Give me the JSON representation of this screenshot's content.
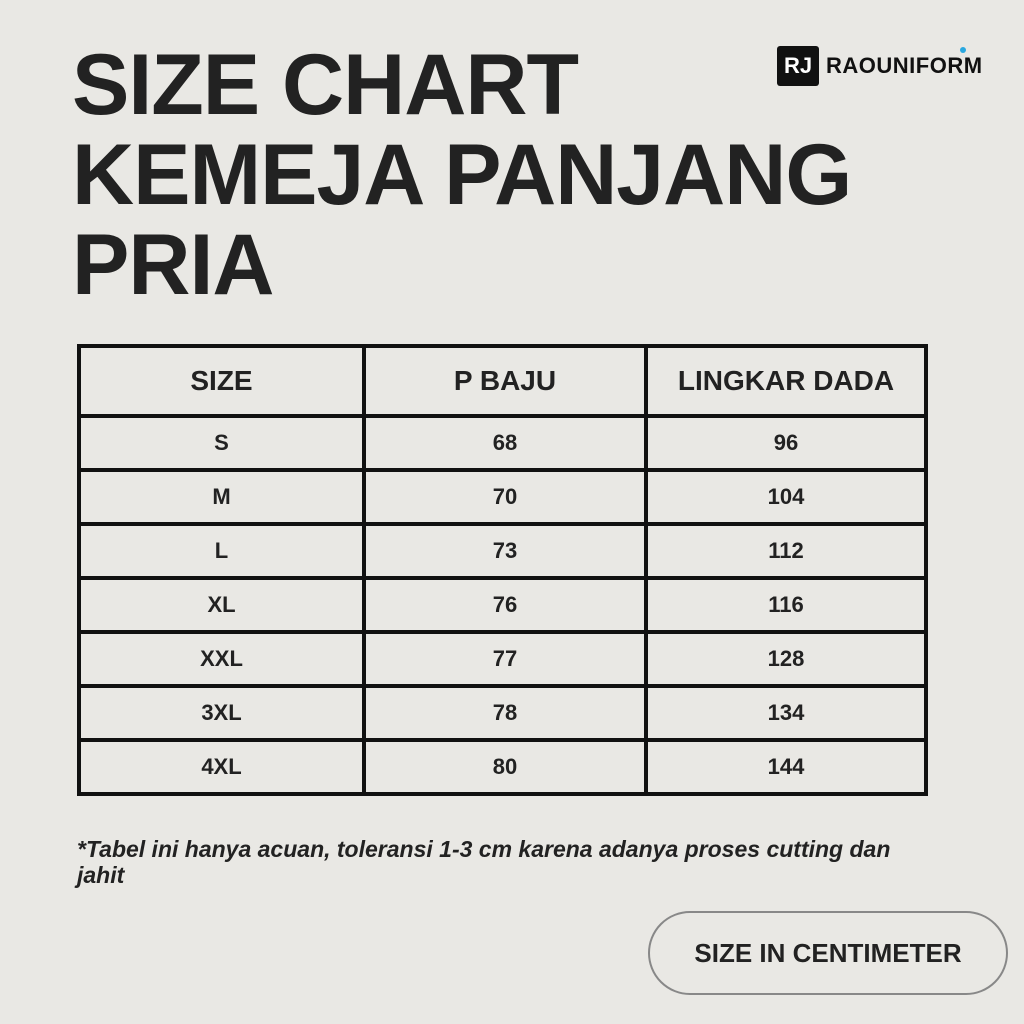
{
  "title": {
    "lines": [
      "SIZE CHART",
      "KEMEJA PANJANG",
      "PRIA"
    ]
  },
  "logo": {
    "mark": "RJ",
    "text": "RAOUNIFORM",
    "dot_color": "#2aa8e0"
  },
  "table": {
    "headers": [
      "SIZE",
      "P BAJU",
      "LINGKAR DADA"
    ],
    "rows": [
      [
        "S",
        "68",
        "96"
      ],
      [
        "M",
        "70",
        "104"
      ],
      [
        "L",
        "73",
        "112"
      ],
      [
        "XL",
        "76",
        "116"
      ],
      [
        "XXL",
        "77",
        "128"
      ],
      [
        "3XL",
        "78",
        "134"
      ],
      [
        "4XL",
        "80",
        "144"
      ]
    ]
  },
  "note": "*Tabel ini hanya acuan, toleransi 1-3 cm karena adanya proses cutting dan jahit",
  "unit_button": "SIZE IN CENTIMETER"
}
